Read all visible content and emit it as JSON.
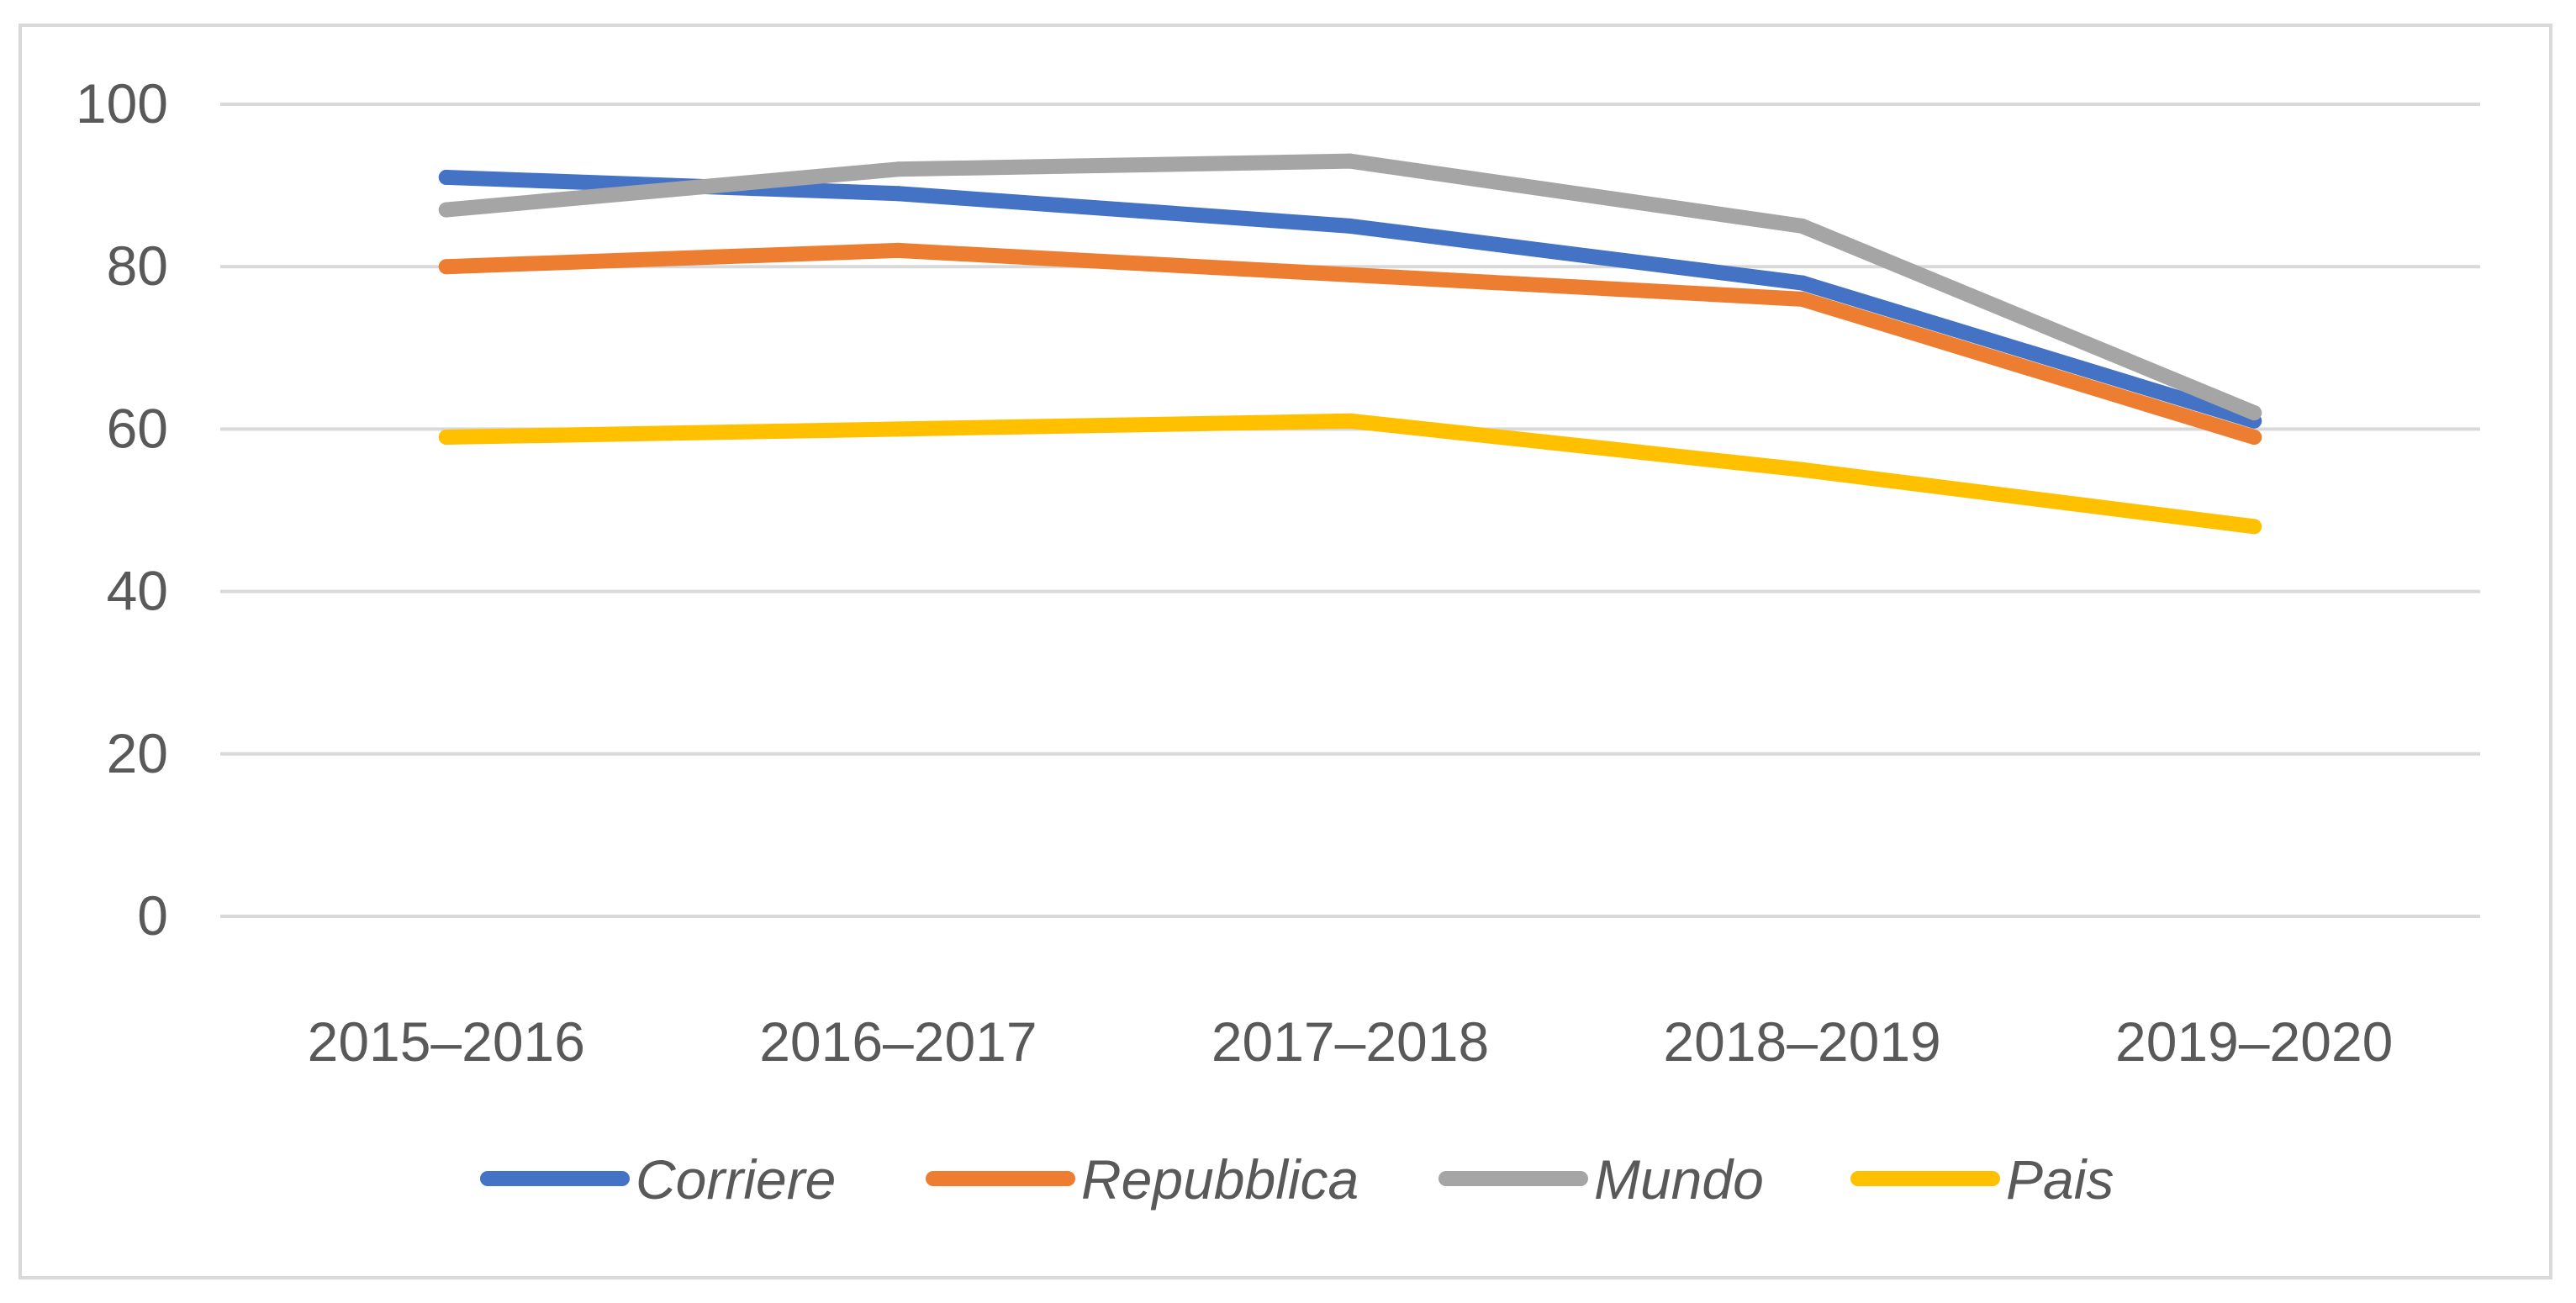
{
  "chart_data": {
    "type": "line",
    "title": "",
    "xlabel": "",
    "ylabel": "",
    "categories": [
      "2015–2016",
      "2016–2017",
      "2017–2018",
      "2018–2019",
      "2019–2020"
    ],
    "y_ticks": [
      "0",
      "20",
      "40",
      "60",
      "80",
      "100"
    ],
    "ylim": [
      0,
      100
    ],
    "grid": true,
    "legend_position": "bottom",
    "series": [
      {
        "name": "Corriere",
        "color": "#4472c4",
        "values": [
          91,
          89,
          85,
          78,
          61
        ]
      },
      {
        "name": "Repubblica",
        "color": "#ed7d31",
        "values": [
          80,
          82,
          79,
          76,
          59
        ]
      },
      {
        "name": "Mundo",
        "color": "#a5a5a5",
        "values": [
          87,
          92,
          93,
          85,
          62
        ]
      },
      {
        "name": "Pais",
        "color": "#ffc000",
        "values": [
          59,
          60,
          61,
          55,
          48
        ]
      }
    ]
  }
}
